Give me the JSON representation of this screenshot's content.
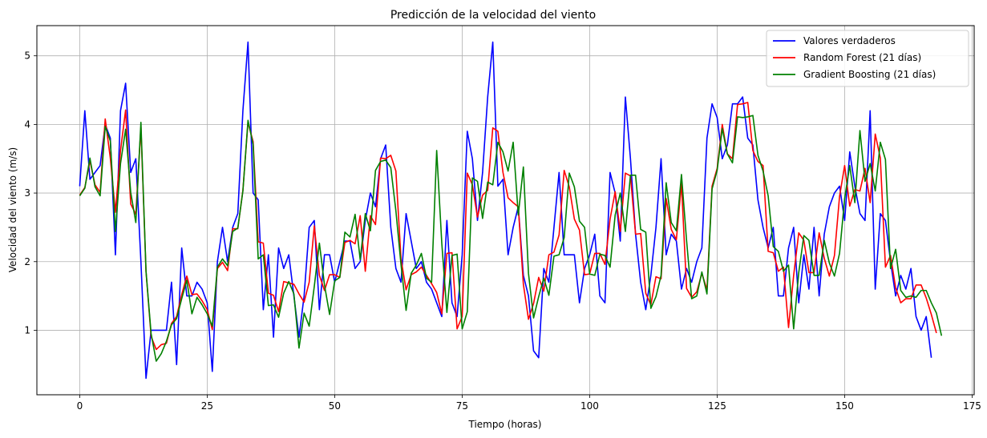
{
  "chart_data": {
    "type": "line",
    "title": "Predicción de la velocidad del viento",
    "xlabel": "Tiempo (horas)",
    "ylabel": "Velocidad del viento (m/s)",
    "xlim": [
      -8.4,
      175.4
    ],
    "ylim": [
      0.06,
      5.44
    ],
    "xticks": [
      0,
      25,
      50,
      75,
      100,
      125,
      150,
      175
    ],
    "yticks": [
      1,
      2,
      3,
      4,
      5
    ],
    "grid": true,
    "legend_position": "top-right",
    "series": [
      {
        "name": "Valores verdaderos",
        "color": "#0000ff",
        "values": [
          3.1,
          4.2,
          3.2,
          3.3,
          3.4,
          4.0,
          3.8,
          2.1,
          4.2,
          4.6,
          3.3,
          3.5,
          2.0,
          0.3,
          1.0,
          1.0,
          1.0,
          1.0,
          1.7,
          0.5,
          2.2,
          1.5,
          1.5,
          1.7,
          1.6,
          1.4,
          0.4,
          2.0,
          2.5,
          2.0,
          2.5,
          2.7,
          4.2,
          5.2,
          3.0,
          2.9,
          1.3,
          2.1,
          0.9,
          2.2,
          1.9,
          2.1,
          1.5,
          0.9,
          1.5,
          2.5,
          2.6,
          1.3,
          2.1,
          2.1,
          1.7,
          2.0,
          2.3,
          2.3,
          1.9,
          2.0,
          2.6,
          3.0,
          2.8,
          3.5,
          3.7,
          2.5,
          1.9,
          1.7,
          2.7,
          2.3,
          1.9,
          2.0,
          1.7,
          1.6,
          1.4,
          1.2,
          2.6,
          1.4,
          1.2,
          2.1,
          3.9,
          3.5,
          2.6,
          3.3,
          4.4,
          5.2,
          3.1,
          3.2,
          2.1,
          2.5,
          2.8,
          1.8,
          1.5,
          0.7,
          0.6,
          1.9,
          1.7,
          2.5,
          3.3,
          2.1,
          2.1,
          2.1,
          1.4,
          1.9,
          2.1,
          2.4,
          1.5,
          1.4,
          3.3,
          3.0,
          2.3,
          4.4,
          3.5,
          2.4,
          1.7,
          1.3,
          1.8,
          2.5,
          3.5,
          2.1,
          2.4,
          2.3,
          1.6,
          1.9,
          1.7,
          2.0,
          2.2,
          3.8,
          4.3,
          4.1,
          3.5,
          3.7,
          4.3,
          4.3,
          4.4,
          3.8,
          3.7,
          2.9,
          2.5,
          2.2,
          2.5,
          1.5,
          1.5,
          2.2,
          2.5,
          1.4,
          2.1,
          1.6,
          2.5,
          1.5,
          2.4,
          2.8,
          3.0,
          3.1,
          2.6,
          3.6,
          3.1,
          2.7,
          2.6,
          4.2,
          1.6,
          2.7,
          2.6,
          2.0,
          1.5,
          1.8,
          1.6,
          1.9,
          1.2,
          1.0,
          1.2,
          0.6
        ]
      },
      {
        "name": "Random Forest (21 días)",
        "color": "#ff0000",
        "values": [
          2.97,
          3.08,
          3.47,
          3.12,
          3.01,
          4.08,
          3.51,
          2.72,
          3.62,
          4.21,
          2.84,
          2.69,
          3.96,
          1.86,
          0.91,
          0.72,
          0.79,
          0.81,
          1.1,
          1.2,
          1.52,
          1.79,
          1.52,
          1.53,
          1.43,
          1.3,
          1.01,
          1.9,
          1.99,
          1.87,
          2.48,
          2.48,
          3.04,
          4.03,
          3.75,
          2.29,
          2.27,
          1.54,
          1.51,
          1.27,
          1.71,
          1.69,
          1.67,
          1.53,
          1.41,
          1.7,
          2.52,
          1.8,
          1.58,
          1.81,
          1.81,
          1.77,
          2.28,
          2.31,
          2.26,
          2.67,
          1.86,
          2.67,
          2.54,
          3.51,
          3.5,
          3.55,
          3.32,
          2.04,
          1.59,
          1.81,
          1.85,
          1.92,
          1.8,
          1.68,
          1.55,
          1.24,
          2.12,
          2.13,
          1.02,
          1.2,
          3.29,
          3.12,
          2.65,
          2.97,
          3.04,
          3.95,
          3.9,
          3.3,
          2.93,
          2.86,
          2.8,
          1.67,
          1.16,
          1.39,
          1.77,
          1.57,
          2.1,
          2.14,
          2.39,
          3.33,
          3.09,
          2.62,
          2.46,
          1.81,
          1.82,
          2.12,
          2.12,
          1.96,
          2.62,
          3.02,
          2.44,
          3.29,
          3.25,
          2.4,
          2.41,
          1.54,
          1.37,
          1.78,
          1.75,
          2.92,
          2.47,
          2.32,
          3.14,
          1.61,
          1.48,
          1.56,
          1.83,
          1.59,
          3.1,
          3.36,
          4.0,
          3.57,
          3.5,
          4.29,
          4.3,
          4.32,
          3.62,
          3.46,
          3.4,
          2.15,
          2.13,
          1.86,
          1.92,
          1.04,
          1.8,
          2.42,
          2.31,
          1.84,
          1.84,
          2.42,
          2.05,
          1.79,
          2.09,
          2.95,
          3.4,
          2.81,
          3.05,
          3.03,
          3.36,
          2.86,
          3.86,
          3.51,
          1.92,
          2.09,
          1.62,
          1.4,
          1.46,
          1.46,
          1.66,
          1.66,
          1.47,
          1.23,
          0.96
        ]
      },
      {
        "name": "Gradient Boosting (21 días)",
        "color": "#008000",
        "values": [
          2.96,
          3.07,
          3.51,
          3.09,
          2.96,
          3.97,
          3.76,
          2.44,
          3.43,
          3.93,
          3.01,
          2.57,
          4.03,
          1.86,
          0.95,
          0.55,
          0.66,
          0.84,
          1.08,
          1.17,
          1.46,
          1.73,
          1.24,
          1.48,
          1.37,
          1.24,
          1.06,
          1.92,
          2.04,
          1.94,
          2.44,
          2.49,
          3.03,
          4.06,
          3.71,
          2.04,
          2.1,
          1.36,
          1.37,
          1.19,
          1.54,
          1.71,
          1.53,
          0.74,
          1.25,
          1.06,
          1.64,
          2.27,
          1.66,
          1.23,
          1.72,
          1.77,
          2.43,
          2.36,
          2.69,
          2.03,
          2.7,
          2.45,
          3.33,
          3.46,
          3.48,
          3.37,
          2.74,
          1.96,
          1.29,
          1.83,
          1.95,
          2.12,
          1.76,
          1.7,
          3.62,
          2.27,
          1.26,
          2.09,
          2.11,
          1.02,
          1.27,
          3.22,
          3.17,
          2.63,
          3.16,
          3.12,
          3.74,
          3.6,
          3.32,
          3.74,
          2.68,
          3.38,
          1.83,
          1.18,
          1.49,
          1.76,
          1.51,
          2.08,
          2.1,
          2.35,
          3.29,
          3.09,
          2.59,
          2.5,
          1.82,
          1.8,
          2.11,
          2.09,
          1.92,
          2.68,
          3.0,
          2.44,
          3.26,
          3.26,
          2.47,
          2.43,
          1.32,
          1.49,
          1.8,
          3.15,
          2.57,
          2.45,
          3.27,
          2.31,
          1.46,
          1.5,
          1.85,
          1.53,
          3.06,
          3.33,
          3.94,
          3.57,
          3.44,
          4.11,
          4.1,
          4.11,
          4.13,
          3.55,
          3.32,
          2.96,
          2.22,
          2.15,
          1.86,
          1.95,
          1.02,
          1.84,
          2.38,
          2.31,
          1.8,
          1.8,
          2.31,
          1.98,
          1.79,
          2.12,
          2.92,
          3.4,
          2.86,
          3.91,
          3.17,
          3.43,
          3.03,
          3.74,
          3.49,
          1.9,
          2.18,
          1.58,
          1.48,
          1.5,
          1.48,
          1.58,
          1.58,
          1.4,
          1.25,
          0.92
        ]
      }
    ]
  }
}
